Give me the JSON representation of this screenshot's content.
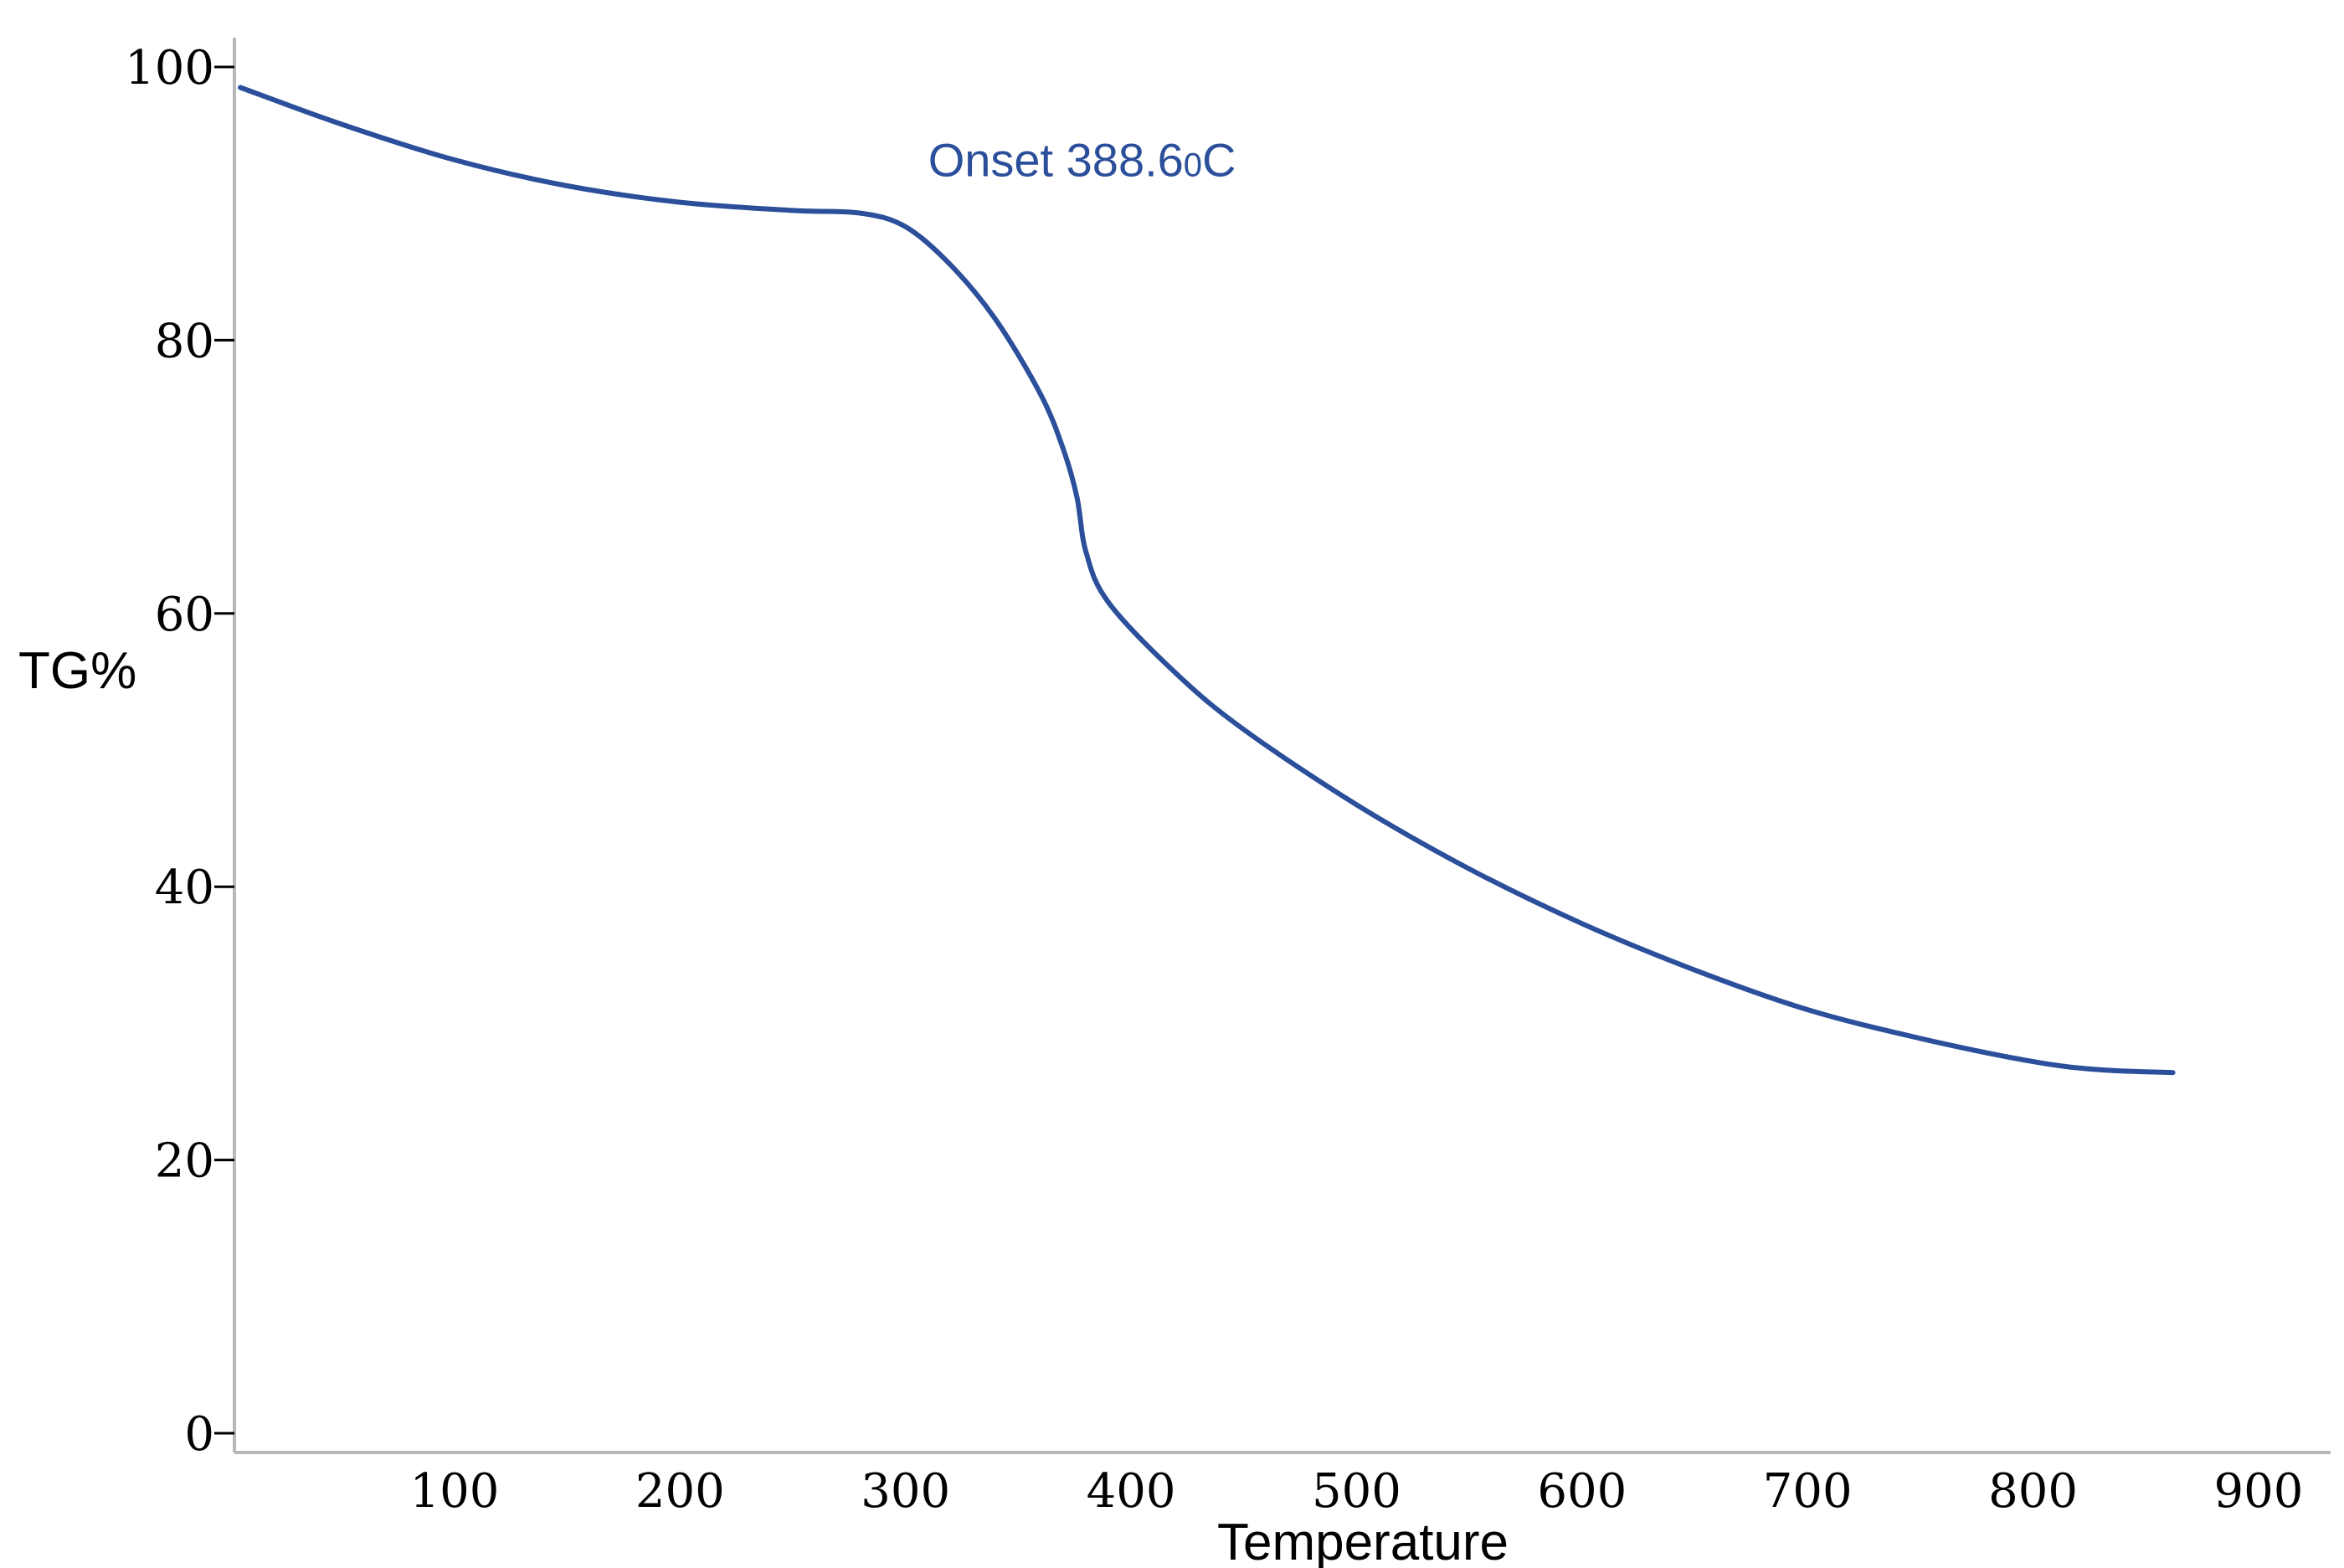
{
  "chart_data": {
    "type": "line",
    "title": "",
    "xlabel": "Temperature",
    "ylabel": "TG%",
    "xlim": [
      0,
      930
    ],
    "ylim": [
      0,
      100
    ],
    "x_ticks": [
      "100",
      "200",
      "300",
      "400",
      "500",
      "600",
      "700",
      "800",
      "900"
    ],
    "y_ticks": [
      "0",
      "20",
      "40",
      "60",
      "80",
      "100"
    ],
    "grid": false,
    "legend": "none",
    "line_color": "#2b4f9a",
    "annotation": {
      "text": "Onset 388.6",
      "sup": "0",
      "unit": "C",
      "x": 310,
      "y": 92
    },
    "series": [
      {
        "x": [
          5,
          50,
          100,
          150,
          200,
          250,
          280,
          300,
          320,
          340,
          360,
          370,
          376,
          380,
          390,
          420,
          450,
          500,
          550,
          600,
          650,
          700,
          750,
          800,
          830,
          862
        ],
        "y": [
          98.5,
          95.8,
          93.2,
          91.3,
          90.1,
          89.5,
          89.3,
          88.3,
          85.5,
          81.5,
          76.0,
          72.0,
          68.5,
          64.5,
          60.8,
          55.6,
          51.5,
          46.0,
          41.3,
          37.3,
          33.9,
          31.0,
          28.9,
          27.2,
          26.6,
          26.4
        ]
      }
    ]
  }
}
